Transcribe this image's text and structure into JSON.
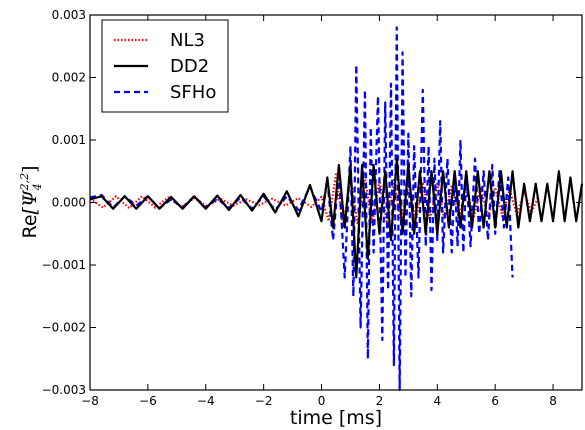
{
  "chart_data": {
    "type": "line",
    "title": "",
    "xlabel": "time [ms]",
    "ylabel": "Re",
    "ylabel_math": "[Ψ",
    "ylabel_math_sub": "4",
    "ylabel_math_sup": "2,2",
    "ylabel_math_end": "]",
    "xlim": [
      -8,
      9
    ],
    "ylim": [
      -0.003,
      0.003
    ],
    "xticks": [
      -8,
      -6,
      -4,
      -2,
      0,
      2,
      4,
      6,
      8
    ],
    "xtick_labels": [
      "−8",
      "−6",
      "−4",
      "−2",
      "0",
      "2",
      "4",
      "6",
      "8"
    ],
    "yticks": [
      -0.003,
      -0.002,
      -0.001,
      0.0,
      0.001,
      0.002,
      0.003
    ],
    "ytick_labels": [
      "−0.003",
      "−0.002",
      "−0.001",
      "0.000",
      "0.001",
      "0.002",
      "0.003"
    ],
    "grid": false,
    "legend_position": "top-left",
    "series": [
      {
        "name": "NL3",
        "color": "#ff0000",
        "style": "dotted",
        "x": [
          -8.0,
          -7.55,
          -7.1,
          -6.65,
          -6.2,
          -5.75,
          -5.3,
          -4.85,
          -4.4,
          -3.95,
          -3.5,
          -3.05,
          -2.6,
          -2.15,
          -1.7,
          -1.25,
          -0.8,
          -0.35,
          0.0,
          0.25,
          0.5,
          0.75,
          1.0,
          1.25,
          1.5,
          1.75,
          2.0,
          2.25,
          2.5,
          2.75,
          3.0,
          3.25,
          3.5,
          3.75,
          4.0,
          4.25,
          4.5,
          4.75,
          5.0,
          5.25,
          5.5,
          5.75,
          6.0,
          6.25,
          6.5,
          6.75,
          7.0,
          7.25,
          7.5
        ],
        "y": [
          6e-05,
          -8e-05,
          0.0001,
          -9e-05,
          0.0001,
          -8e-05,
          8e-05,
          -7e-05,
          7e-05,
          -6e-05,
          6e-05,
          -5e-05,
          5e-05,
          -4e-05,
          6e-05,
          -5e-05,
          7e-05,
          -7e-05,
          9e-05,
          -0.0003,
          0.00045,
          -0.0004,
          0.0004,
          -0.00035,
          0.00038,
          -0.00032,
          0.00035,
          -0.0003,
          0.00036,
          -0.00032,
          0.00034,
          -0.0003,
          0.0003,
          -0.00028,
          0.0003,
          -0.00027,
          0.00028,
          -0.00026,
          0.00027,
          -0.00025,
          0.00025,
          -0.00024,
          0.00024,
          -0.00022,
          0.0002,
          -0.0002,
          0.00018,
          -0.00016,
          0.0001
        ]
      },
      {
        "name": "DD2",
        "color": "#000000",
        "style": "solid",
        "x": [
          -8.0,
          -7.6,
          -7.2,
          -6.8,
          -6.4,
          -6.0,
          -5.6,
          -5.2,
          -4.8,
          -4.4,
          -4.0,
          -3.6,
          -3.2,
          -2.8,
          -2.4,
          -2.0,
          -1.6,
          -1.2,
          -0.8,
          -0.4,
          0.0,
          0.2,
          0.4,
          0.6,
          0.8,
          1.0,
          1.2,
          1.4,
          1.6,
          1.8,
          2.0,
          2.2,
          2.4,
          2.6,
          2.8,
          3.0,
          3.2,
          3.4,
          3.6,
          3.8,
          4.0,
          4.2,
          4.4,
          4.6,
          4.8,
          5.0,
          5.2,
          5.4,
          5.6,
          5.8,
          6.0,
          6.2,
          6.4,
          6.6,
          6.8,
          7.0,
          7.2,
          7.4,
          7.6,
          7.8,
          8.0,
          8.2,
          8.4,
          8.6,
          8.8,
          9.0
        ],
        "y": [
          5e-05,
          0.0001,
          -0.0001,
          0.0001,
          -0.0001,
          0.0001,
          -0.0001,
          9e-05,
          -0.0001,
          0.0001,
          -0.0001,
          0.00011,
          -0.00012,
          0.00012,
          -0.00013,
          0.00014,
          -0.00016,
          0.00018,
          -0.00022,
          0.00028,
          -0.0003,
          0.0004,
          -0.0004,
          0.0006,
          -0.0004,
          0.0006,
          -0.0012,
          0.0006,
          -0.0009,
          0.0006,
          -0.0005,
          0.0005,
          -0.0006,
          0.0007,
          -0.0005,
          0.0006,
          -0.0005,
          0.0005,
          -0.0005,
          0.0005,
          -0.0005,
          0.0005,
          -0.0004,
          0.0005,
          -0.0004,
          0.0005,
          -0.0004,
          0.0005,
          -0.0004,
          0.0005,
          -0.0004,
          0.0005,
          -0.0004,
          0.0005,
          -0.0004,
          0.0003,
          -0.0003,
          0.0003,
          -0.0003,
          0.0003,
          -0.0003,
          0.0005,
          -0.0003,
          0.0004,
          -0.0003,
          0.0003
        ]
      },
      {
        "name": "SFHo",
        "color": "#0000ff",
        "style": "dashed",
        "x": [
          -8.0,
          -7.6,
          -7.2,
          -6.8,
          -6.4,
          -6.0,
          -5.6,
          -5.2,
          -4.8,
          -4.4,
          -4.0,
          -3.6,
          -3.2,
          -2.8,
          -2.4,
          -2.0,
          -1.6,
          -1.2,
          -0.8,
          -0.4,
          0.0,
          0.2,
          0.4,
          0.6,
          0.8,
          1.0,
          1.1,
          1.2,
          1.35,
          1.5,
          1.6,
          1.7,
          1.8,
          1.95,
          2.1,
          2.2,
          2.3,
          2.4,
          2.5,
          2.6,
          2.7,
          2.8,
          2.9,
          3.0,
          3.1,
          3.2,
          3.35,
          3.5,
          3.6,
          3.7,
          3.8,
          3.9,
          4.0,
          4.1,
          4.2,
          4.35,
          4.5,
          4.6,
          4.7,
          4.8,
          4.9,
          5.0,
          5.15,
          5.3,
          5.45,
          5.6,
          5.75,
          5.9,
          6.0,
          6.15,
          6.3,
          6.45,
          6.6
        ],
        "y": [
          8e-05,
          0.00012,
          -8e-05,
          0.0001,
          -5e-05,
          0.0001,
          -9e-05,
          5e-05,
          -8e-05,
          0.0001,
          -8e-05,
          6e-05,
          -9e-05,
          8e-05,
          -0.0001,
          0.0001,
          -0.00012,
          0.0001,
          -0.00012,
          0.00025,
          -0.00015,
          0.00035,
          -0.0006,
          0.0005,
          -0.0012,
          0.0009,
          -0.0015,
          0.0022,
          -0.002,
          0.0018,
          -0.0025,
          0.0012,
          -0.0008,
          0.0017,
          -0.0022,
          0.0016,
          -0.0014,
          0.0019,
          -0.0026,
          0.0028,
          -0.003,
          0.0024,
          -0.0012,
          0.0011,
          -0.0015,
          0.0009,
          -0.0012,
          0.0018,
          -0.0007,
          0.0009,
          -0.0014,
          0.0007,
          -0.0006,
          0.0013,
          -0.0008,
          0.0007,
          -0.0008,
          0.0005,
          -0.0007,
          0.001,
          -0.0008,
          0.0005,
          -0.0007,
          0.0007,
          -0.0005,
          0.0005,
          -0.0006,
          0.0006,
          -0.0005,
          0.0005,
          -0.0004,
          0.0004,
          -0.0012
        ]
      }
    ]
  }
}
